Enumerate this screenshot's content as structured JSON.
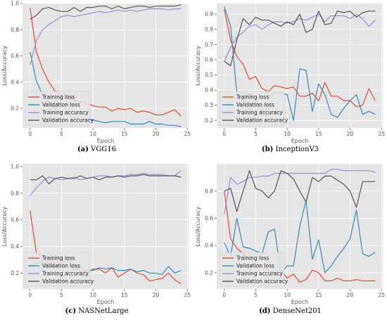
{
  "chart_data": [
    {
      "type": "line",
      "panel_id": "a",
      "caption_letter": "(a)",
      "caption_name": "VGG16",
      "xlabel": "Epoch",
      "ylabel": "Loss/Accuracy",
      "xlim": [
        -1.2,
        25.2
      ],
      "ylim": [
        0.05,
        1.0
      ],
      "xticks": [
        0,
        5,
        10,
        15,
        20,
        25
      ],
      "yticks": [
        0.2,
        0.4,
        0.6,
        0.8,
        1.0
      ],
      "ytick_labels": [
        "0.2",
        "0.4",
        "0.6",
        "0.8",
        "1.0"
      ],
      "legend_position": "lower-left",
      "grid": true,
      "x": [
        0,
        1,
        2,
        3,
        4,
        5,
        6,
        7,
        8,
        9,
        10,
        11,
        12,
        13,
        14,
        15,
        16,
        17,
        18,
        19,
        20,
        21,
        22,
        23,
        24
      ],
      "series": [
        {
          "name": "Training loss",
          "color": "#e24a33",
          "values": [
            0.97,
            0.63,
            0.5,
            0.4,
            0.33,
            0.3,
            0.3,
            0.26,
            0.25,
            0.24,
            0.22,
            0.21,
            0.21,
            0.18,
            0.2,
            0.19,
            0.2,
            0.17,
            0.18,
            0.17,
            0.15,
            0.15,
            0.17,
            0.19,
            0.14
          ]
        },
        {
          "name": "Validation loss",
          "color": "#348abd",
          "values": [
            0.63,
            0.41,
            0.3,
            0.24,
            0.2,
            0.18,
            0.16,
            0.13,
            0.12,
            0.11,
            0.11,
            0.1,
            0.09,
            0.1,
            0.1,
            0.1,
            0.08,
            0.08,
            0.08,
            0.1,
            0.08,
            0.08,
            0.07,
            0.07,
            0.06
          ]
        },
        {
          "name": "Training accuracy",
          "color": "#988ed5",
          "values": [
            0.53,
            0.72,
            0.8,
            0.84,
            0.87,
            0.9,
            0.91,
            0.9,
            0.91,
            0.92,
            0.93,
            0.94,
            0.93,
            0.94,
            0.95,
            0.94,
            0.95,
            0.94,
            0.95,
            0.96,
            0.96,
            0.96,
            0.95,
            0.96,
            0.96
          ]
        },
        {
          "name": "Validation accuracy",
          "color": "#555555",
          "values": [
            0.88,
            0.91,
            0.96,
            0.97,
            0.95,
            0.94,
            0.94,
            0.97,
            0.94,
            0.97,
            0.97,
            0.98,
            0.98,
            0.96,
            0.98,
            0.96,
            0.97,
            0.98,
            0.98,
            0.97,
            0.98,
            0.98,
            0.98,
            0.98,
            0.99
          ]
        }
      ]
    },
    {
      "type": "line",
      "panel_id": "b",
      "caption_letter": "(b)",
      "caption_name": "InceptionV3",
      "xlabel": "Epoch",
      "ylabel": "Loss/Accuracy",
      "xlim": [
        -1.2,
        25.2
      ],
      "ylim": [
        0.15,
        0.97
      ],
      "xticks": [
        0,
        5,
        10,
        15,
        20,
        25
      ],
      "yticks": [
        0.2,
        0.3,
        0.4,
        0.5,
        0.6,
        0.7,
        0.8,
        0.9
      ],
      "ytick_labels": [
        "0.2",
        "0.3",
        "0.4",
        "0.5",
        "0.6",
        "0.7",
        "0.8",
        "0.9"
      ],
      "legend_position": "lower-left",
      "grid": true,
      "x": [
        0,
        1,
        2,
        3,
        4,
        5,
        6,
        7,
        8,
        9,
        10,
        11,
        12,
        13,
        14,
        15,
        16,
        17,
        18,
        19,
        20,
        21,
        22,
        23,
        24
      ],
      "series": [
        {
          "name": "Training loss",
          "color": "#e24a33",
          "values": [
            0.93,
            0.73,
            0.62,
            0.57,
            0.47,
            0.49,
            0.41,
            0.39,
            0.43,
            0.42,
            0.41,
            0.42,
            0.36,
            0.36,
            0.38,
            0.33,
            0.45,
            0.36,
            0.36,
            0.33,
            0.33,
            0.29,
            0.3,
            0.41,
            0.33
          ]
        },
        {
          "name": "Validation loss",
          "color": "#348abd",
          "values": [
            0.95,
            0.82,
            0.38,
            0.33,
            0.38,
            0.33,
            0.26,
            0.35,
            0.38,
            0.38,
            0.37,
            0.2,
            0.54,
            0.53,
            0.26,
            0.44,
            0.37,
            0.24,
            0.22,
            0.28,
            0.33,
            0.37,
            0.24,
            0.26,
            0.24
          ]
        },
        {
          "name": "Training accuracy",
          "color": "#988ed5",
          "values": [
            0.59,
            0.68,
            0.75,
            0.78,
            0.82,
            0.83,
            0.8,
            0.83,
            0.85,
            0.85,
            0.84,
            0.85,
            0.87,
            0.86,
            0.88,
            0.9,
            0.85,
            0.89,
            0.89,
            0.89,
            0.87,
            0.9,
            0.87,
            0.82,
            0.86
          ]
        },
        {
          "name": "Validation accuracy",
          "color": "#555555",
          "values": [
            0.59,
            0.56,
            0.73,
            0.87,
            0.83,
            0.88,
            0.86,
            0.86,
            0.84,
            0.82,
            0.85,
            0.83,
            0.9,
            0.78,
            0.8,
            0.92,
            0.83,
            0.84,
            0.92,
            0.91,
            0.92,
            0.88,
            0.91,
            0.92,
            0.92
          ]
        }
      ]
    },
    {
      "type": "line",
      "panel_id": "c",
      "caption_letter": "(c)",
      "caption_name": "NASNetLarge",
      "xlabel": "Epoch",
      "ylabel": "Loss/Accuracy",
      "xlim": [
        -1.2,
        25.2
      ],
      "ylim": [
        0.08,
        1.02
      ],
      "xticks": [
        0,
        5,
        10,
        15,
        20,
        25
      ],
      "yticks": [
        0.2,
        0.4,
        0.6,
        0.8,
        1.0
      ],
      "ytick_labels": [
        "0.2",
        "0.4",
        "0.6",
        "0.8",
        "1.0"
      ],
      "legend_position": "lower-left",
      "grid": true,
      "x": [
        0,
        1,
        2,
        3,
        4,
        5,
        6,
        7,
        8,
        9,
        10,
        11,
        12,
        13,
        14,
        15,
        16,
        17,
        18,
        19,
        20,
        21,
        22,
        23,
        24
      ],
      "series": [
        {
          "name": "Training loss",
          "color": "#e24a33",
          "values": [
            0.67,
            0.35,
            0.33,
            0.26,
            0.32,
            0.32,
            0.29,
            0.22,
            0.25,
            0.2,
            0.23,
            0.23,
            0.2,
            0.24,
            0.17,
            0.2,
            0.23,
            0.2,
            0.19,
            0.14,
            0.15,
            0.16,
            0.2,
            0.15,
            0.12
          ]
        },
        {
          "name": "Validation loss",
          "color": "#348abd",
          "values": [
            0.26,
            0.27,
            0.29,
            0.25,
            0.25,
            0.26,
            0.3,
            0.27,
            0.21,
            0.22,
            0.22,
            0.24,
            0.23,
            0.24,
            0.22,
            0.22,
            0.23,
            0.21,
            0.22,
            0.2,
            0.2,
            0.19,
            0.25,
            0.2,
            0.22
          ]
        },
        {
          "name": "Training accuracy",
          "color": "#988ed5",
          "values": [
            0.78,
            0.84,
            0.89,
            0.92,
            0.91,
            0.9,
            0.91,
            0.92,
            0.9,
            0.91,
            0.92,
            0.93,
            0.93,
            0.92,
            0.93,
            0.93,
            0.94,
            0.94,
            0.95,
            0.94,
            0.94,
            0.94,
            0.93,
            0.93,
            0.97
          ]
        },
        {
          "name": "Validation accuracy",
          "color": "#555555",
          "values": [
            0.9,
            0.9,
            0.93,
            0.87,
            0.91,
            0.92,
            0.91,
            0.91,
            0.93,
            0.91,
            0.92,
            0.9,
            0.92,
            0.92,
            0.93,
            0.92,
            0.93,
            0.93,
            0.94,
            0.93,
            0.93,
            0.93,
            0.93,
            0.93,
            0.92
          ]
        }
      ]
    },
    {
      "type": "line",
      "panel_id": "d",
      "caption_letter": "(d)",
      "caption_name": "DenseNet201",
      "xlabel": "Epoch",
      "ylabel": "Loss/Accuracy",
      "xlim": [
        -1.2,
        25.2
      ],
      "ylim": [
        0.08,
        1.0
      ],
      "xticks": [
        0,
        5,
        10,
        15,
        20,
        25
      ],
      "yticks": [
        0.2,
        0.4,
        0.6,
        0.8
      ],
      "ytick_labels": [
        "0.2",
        "0.4",
        "0.6",
        "0.8"
      ],
      "legend_position": "lower-left",
      "grid": true,
      "x": [
        0,
        1,
        2,
        3,
        4,
        5,
        6,
        7,
        8,
        9,
        10,
        11,
        12,
        13,
        14,
        15,
        16,
        17,
        18,
        19,
        20,
        21,
        22,
        23,
        24
      ],
      "series": [
        {
          "name": "Training loss",
          "color": "#e24a33",
          "values": [
            0.8,
            0.45,
            0.38,
            0.34,
            0.3,
            0.26,
            0.24,
            0.22,
            0.2,
            0.22,
            0.16,
            0.19,
            0.13,
            0.15,
            0.22,
            0.2,
            0.14,
            0.14,
            0.16,
            0.14,
            0.14,
            0.15,
            0.14,
            0.14,
            0.14
          ]
        },
        {
          "name": "Validation loss",
          "color": "#348abd",
          "values": [
            0.42,
            0.32,
            0.6,
            0.39,
            0.38,
            0.36,
            0.34,
            0.5,
            0.52,
            0.2,
            0.25,
            0.25,
            0.54,
            0.73,
            0.3,
            0.44,
            0.2,
            0.25,
            0.32,
            0.38,
            0.45,
            0.66,
            0.34,
            0.32,
            0.35
          ]
        },
        {
          "name": "Training accuracy",
          "color": "#988ed5",
          "values": [
            0.63,
            0.9,
            0.85,
            0.87,
            0.9,
            0.9,
            0.91,
            0.91,
            0.93,
            0.93,
            0.93,
            0.93,
            0.93,
            0.93,
            0.93,
            0.93,
            0.93,
            0.96,
            0.96,
            0.95,
            0.95,
            0.95,
            0.95,
            0.95,
            0.94
          ]
        },
        {
          "name": "Validation accuracy",
          "color": "#555555",
          "values": [
            0.8,
            0.82,
            0.65,
            0.8,
            0.95,
            0.82,
            0.8,
            0.75,
            0.8,
            0.95,
            0.93,
            0.89,
            0.8,
            0.72,
            0.9,
            0.87,
            0.91,
            0.91,
            0.88,
            0.85,
            0.8,
            0.68,
            0.87,
            0.87,
            0.87
          ]
        }
      ]
    }
  ]
}
